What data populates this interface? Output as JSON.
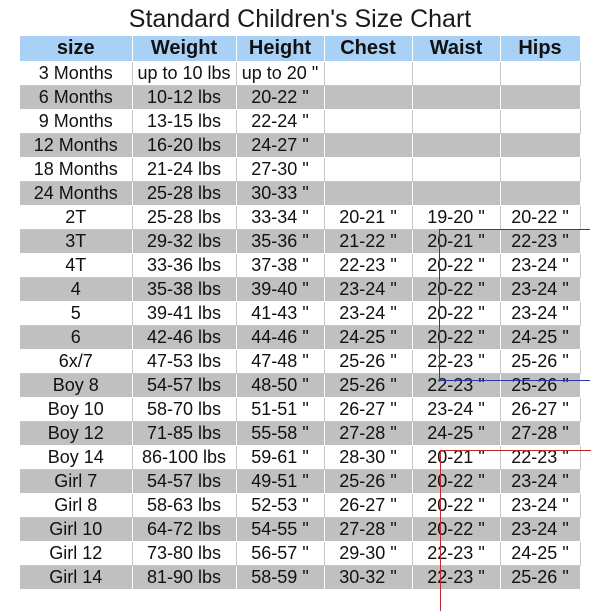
{
  "title": "Standard Children's Size Chart",
  "headers": [
    "size",
    "Weight",
    "Height",
    "Chest",
    "Waist",
    "Hips"
  ],
  "rows": [
    [
      "3 Months",
      "up to 10 lbs",
      "up to 20 \"",
      "",
      "",
      ""
    ],
    [
      "6 Months",
      "10-12 lbs",
      "20-22 \"",
      "",
      "",
      ""
    ],
    [
      "9 Months",
      "13-15 lbs",
      "22-24 \"",
      "",
      "",
      ""
    ],
    [
      "12 Months",
      "16-20 lbs",
      "24-27 \"",
      "",
      "",
      ""
    ],
    [
      "18 Months",
      "21-24 lbs",
      "27-30 \"",
      "",
      "",
      ""
    ],
    [
      "24 Months",
      "25-28 lbs",
      "30-33 \"",
      "",
      "",
      ""
    ],
    [
      "2T",
      "25-28 lbs",
      "33-34 \"",
      "20-21 \"",
      "19-20 \"",
      "20-22 \""
    ],
    [
      "3T",
      "29-32 lbs",
      "35-36 \"",
      "21-22 \"",
      "20-21 \"",
      "22-23 \""
    ],
    [
      "4T",
      "33-36 lbs",
      "37-38 \"",
      "22-23 \"",
      "20-22 \"",
      "23-24 \""
    ],
    [
      "4",
      "35-38 lbs",
      "39-40 \"",
      "23-24 \"",
      "20-22 \"",
      "23-24 \""
    ],
    [
      "5",
      "39-41 lbs",
      "41-43 \"",
      "23-24 \"",
      "20-22 \"",
      "23-24 \""
    ],
    [
      "6",
      "42-46 lbs",
      "44-46 \"",
      "24-25 \"",
      "20-22 \"",
      "24-25 \""
    ],
    [
      "6x/7",
      "47-53 lbs",
      "47-48 \"",
      "25-26 \"",
      "22-23 \"",
      "25-26 \""
    ],
    [
      "Boy 8",
      "54-57 lbs",
      "48-50 \"",
      "25-26 \"",
      "22-23 \"",
      "25-26 \""
    ],
    [
      "Boy 10",
      "58-70 lbs",
      "51-51 \"",
      "26-27 \"",
      "23-24 \"",
      "26-27 \""
    ],
    [
      "Boy 12",
      "71-85 lbs",
      "55-58 \"",
      "27-28 \"",
      "24-25 \"",
      "27-28 \""
    ],
    [
      "Boy 14",
      "86-100 lbs",
      "59-61 \"",
      "28-30 \"",
      "20-21 \"",
      "22-23 \""
    ],
    [
      "Girl 7",
      "54-57 lbs",
      "49-51 \"",
      "25-26 \"",
      "20-22 \"",
      "23-24 \""
    ],
    [
      "Girl 8",
      "58-63 lbs",
      "52-53 \"",
      "26-27 \"",
      "20-22 \"",
      "23-24 \""
    ],
    [
      "Girl 10",
      "64-72 lbs",
      "54-55 \"",
      "27-28 \"",
      "20-22 \"",
      "23-24 \""
    ],
    [
      "Girl 12",
      "73-80 lbs",
      "56-57 \"",
      "29-30 \"",
      "22-23 \"",
      "24-25 \""
    ],
    [
      "Girl 14",
      "81-90 lbs",
      "58-59 \"",
      "30-32 \"",
      "22-23 \"",
      "25-26 \""
    ]
  ],
  "colors": {
    "header_bg": "#a9d0f5",
    "stripe_bg": "#c0c0c0",
    "highlight_blue": "#2b3aa8",
    "highlight_red": "#c0282b"
  }
}
